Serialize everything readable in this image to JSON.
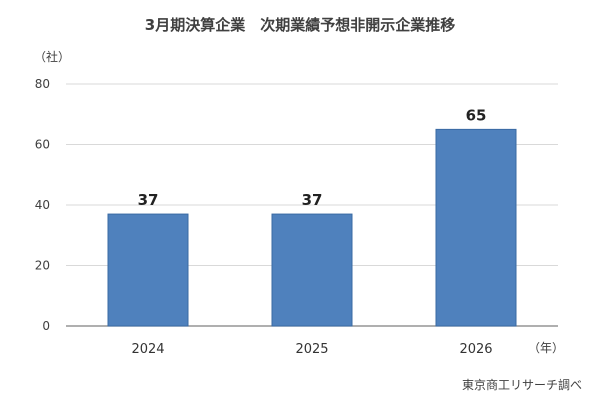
{
  "chart_data": {
    "type": "bar",
    "title": "3月期決算企業　次期業績予想非開示企業推移",
    "y_unit": "（社）",
    "x_unit": "（年）",
    "categories": [
      "2024",
      "2025",
      "2026"
    ],
    "values": [
      37,
      37,
      65
    ],
    "data_labels": [
      "37",
      "37",
      "65"
    ],
    "yticks": [
      "0",
      "20",
      "40",
      "60",
      "80"
    ],
    "ylim": [
      0,
      80
    ],
    "grid": true,
    "bar_color": "#4f81bd",
    "grid_color": "#d9d9d9"
  },
  "source": "東京商工リサーチ調べ"
}
